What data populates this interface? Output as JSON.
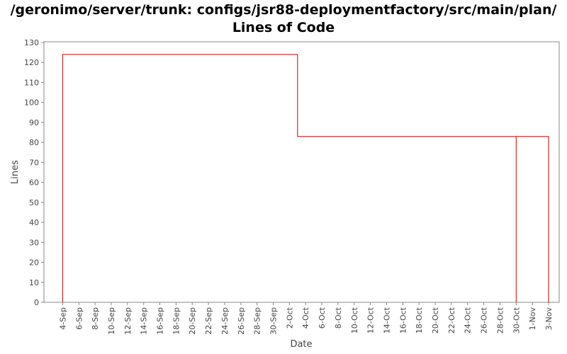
{
  "title_line1": "/geronimo/server/trunk: configs/jsr88-deploymentfactory/src/main/plan/",
  "title_line2": "Lines of Code",
  "chart_data": {
    "type": "line",
    "title": "/geronimo/server/trunk: configs/jsr88-deploymentfactory/src/main/plan/ Lines of Code",
    "xlabel": "Date",
    "ylabel": "Lines",
    "ylim": [
      0,
      130
    ],
    "yticks": [
      0,
      10,
      20,
      30,
      40,
      50,
      60,
      70,
      80,
      90,
      100,
      110,
      120,
      130
    ],
    "xlim": [
      "2006-09-03",
      "2006-11-03"
    ],
    "xticks": [
      {
        "date": "2006-09-04",
        "label": "4-Sep"
      },
      {
        "date": "2006-09-06",
        "label": "6-Sep"
      },
      {
        "date": "2006-09-08",
        "label": "8-Sep"
      },
      {
        "date": "2006-09-10",
        "label": "10-Sep"
      },
      {
        "date": "2006-09-12",
        "label": "12-Sep"
      },
      {
        "date": "2006-09-14",
        "label": "14-Sep"
      },
      {
        "date": "2006-09-16",
        "label": "16-Sep"
      },
      {
        "date": "2006-09-18",
        "label": "18-Sep"
      },
      {
        "date": "2006-09-20",
        "label": "20-Sep"
      },
      {
        "date": "2006-09-22",
        "label": "22-Sep"
      },
      {
        "date": "2006-09-24",
        "label": "24-Sep"
      },
      {
        "date": "2006-09-26",
        "label": "26-Sep"
      },
      {
        "date": "2006-09-28",
        "label": "28-Sep"
      },
      {
        "date": "2006-09-30",
        "label": "30-Sep"
      },
      {
        "date": "2006-10-02",
        "label": "2-Oct"
      },
      {
        "date": "2006-10-04",
        "label": "4-Oct"
      },
      {
        "date": "2006-10-06",
        "label": "6-Oct"
      },
      {
        "date": "2006-10-08",
        "label": "8-Oct"
      },
      {
        "date": "2006-10-10",
        "label": "10-Oct"
      },
      {
        "date": "2006-10-12",
        "label": "12-Oct"
      },
      {
        "date": "2006-10-14",
        "label": "14-Oct"
      },
      {
        "date": "2006-10-16",
        "label": "16-Oct"
      },
      {
        "date": "2006-10-18",
        "label": "18-Oct"
      },
      {
        "date": "2006-10-20",
        "label": "20-Oct"
      },
      {
        "date": "2006-10-22",
        "label": "22-Oct"
      },
      {
        "date": "2006-10-24",
        "label": "24-Oct"
      },
      {
        "date": "2006-10-26",
        "label": "26-Oct"
      },
      {
        "date": "2006-10-28",
        "label": "28-Oct"
      },
      {
        "date": "2006-10-30",
        "label": "30-Oct"
      },
      {
        "date": "2006-11-01",
        "label": "1-Nov"
      },
      {
        "date": "2006-11-03",
        "label": "3-Nov"
      }
    ],
    "grid": false,
    "series": [
      {
        "color": "#cc0000",
        "step": true,
        "points": [
          {
            "x": "2006-09-04",
            "y": 0
          },
          {
            "x": "2006-09-04",
            "y": 124
          },
          {
            "x": "2006-10-03",
            "y": 124
          },
          {
            "x": "2006-10-03",
            "y": 83
          },
          {
            "x": "2006-10-30",
            "y": 83
          },
          {
            "x": "2006-10-30",
            "y": 0
          },
          {
            "x": "2006-10-30",
            "y": 83
          },
          {
            "x": "2006-11-03",
            "y": 83
          },
          {
            "x": "2006-11-03",
            "y": 0
          }
        ]
      }
    ]
  }
}
